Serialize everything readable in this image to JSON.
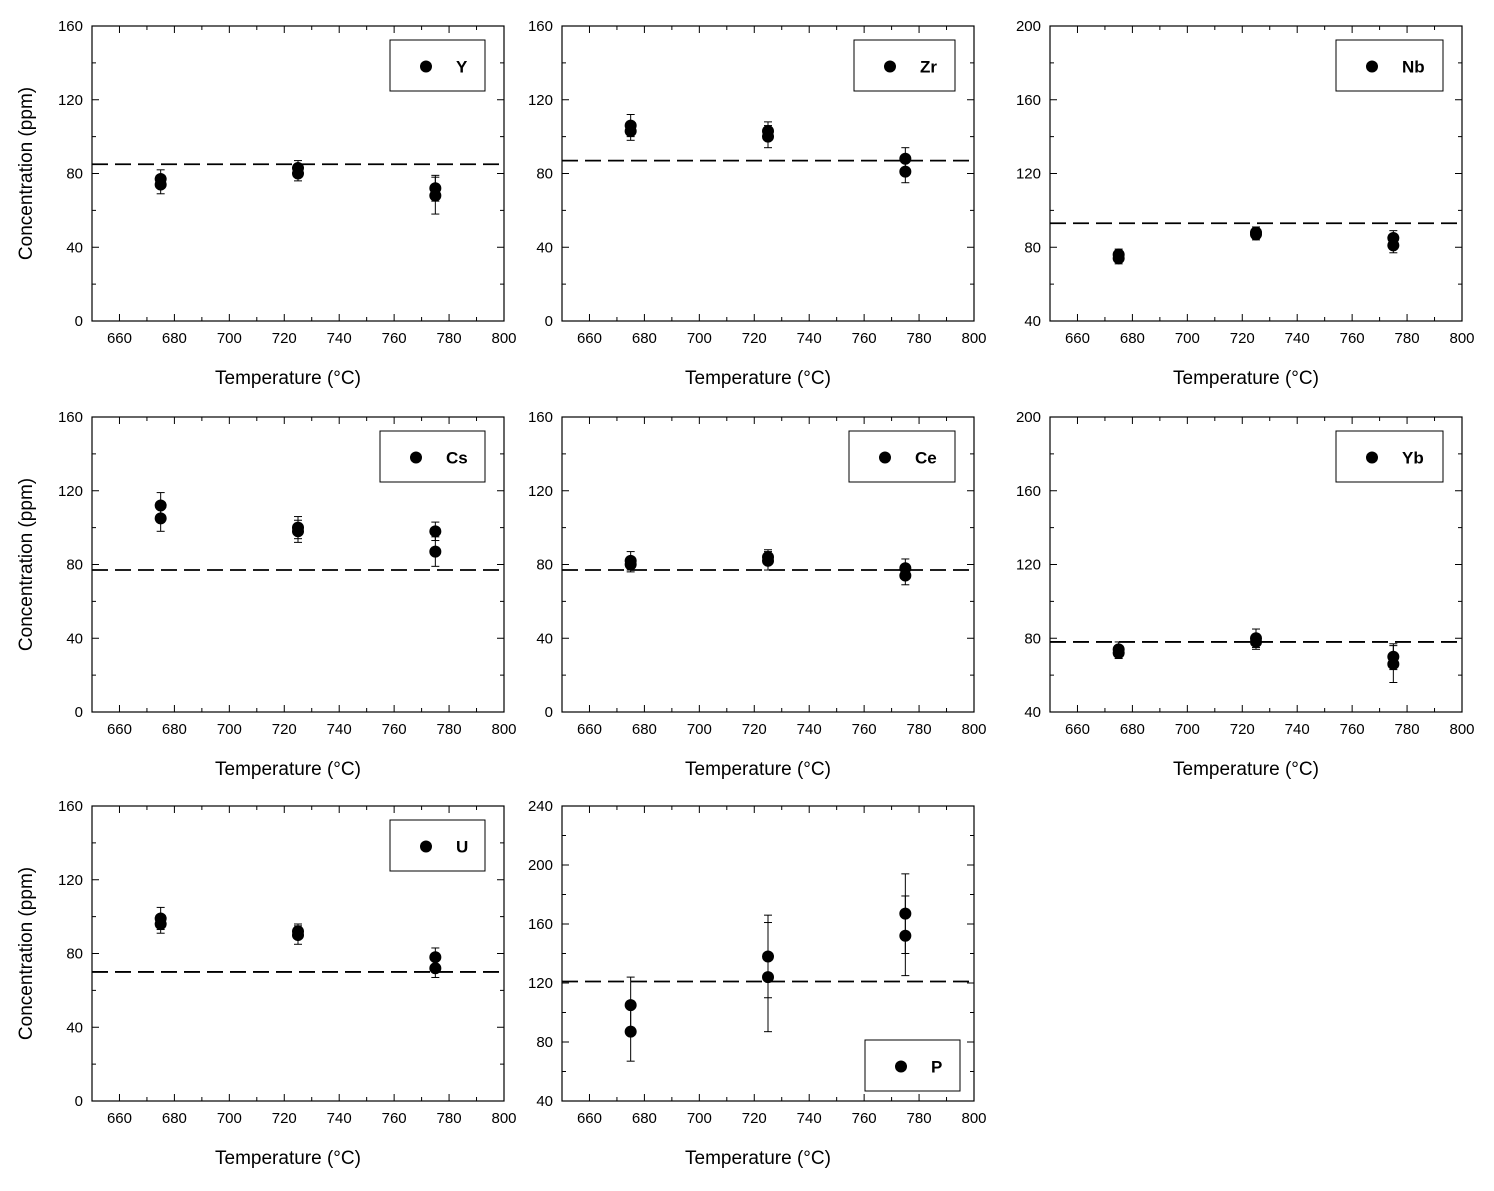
{
  "figure": {
    "xlabel": "Temperature (°C)",
    "ylabel": "Concentration (ppm)"
  },
  "chart_data": [
    {
      "type": "scatter",
      "element": "Y",
      "xlim": [
        650,
        800
      ],
      "xticks": [
        660,
        680,
        700,
        720,
        740,
        760,
        780,
        800
      ],
      "ylim": [
        0,
        160
      ],
      "yticks": [
        0,
        40,
        80,
        120,
        160
      ],
      "reference": 85,
      "legend_position": "top-right",
      "points": [
        {
          "x": 675,
          "y": 77,
          "err": 5
        },
        {
          "x": 675,
          "y": 74,
          "err": 5
        },
        {
          "x": 725,
          "y": 83,
          "err": 4
        },
        {
          "x": 725,
          "y": 80,
          "err": 4
        },
        {
          "x": 775,
          "y": 72,
          "err": 7
        },
        {
          "x": 775,
          "y": 68,
          "err": 10
        }
      ]
    },
    {
      "type": "scatter",
      "element": "Zr",
      "xlim": [
        650,
        800
      ],
      "xticks": [
        660,
        680,
        700,
        720,
        740,
        760,
        780,
        800
      ],
      "ylim": [
        0,
        160
      ],
      "yticks": [
        0,
        40,
        80,
        120,
        160
      ],
      "reference": 87,
      "legend_position": "top-right",
      "points": [
        {
          "x": 675,
          "y": 106,
          "err": 6
        },
        {
          "x": 675,
          "y": 103,
          "err": 5
        },
        {
          "x": 725,
          "y": 103,
          "err": 5
        },
        {
          "x": 725,
          "y": 100,
          "err": 6
        },
        {
          "x": 775,
          "y": 88,
          "err": 6
        },
        {
          "x": 775,
          "y": 81,
          "err": 6
        }
      ]
    },
    {
      "type": "scatter",
      "element": "Nb",
      "xlim": [
        650,
        800
      ],
      "xticks": [
        660,
        680,
        700,
        720,
        740,
        760,
        780,
        800
      ],
      "ylim": [
        40,
        200
      ],
      "yticks": [
        40,
        80,
        120,
        160,
        200
      ],
      "reference": 93,
      "legend_position": "top-right",
      "points": [
        {
          "x": 675,
          "y": 76,
          "err": 3
        },
        {
          "x": 675,
          "y": 74,
          "err": 3
        },
        {
          "x": 725,
          "y": 88,
          "err": 3
        },
        {
          "x": 725,
          "y": 87,
          "err": 3
        },
        {
          "x": 775,
          "y": 85,
          "err": 4
        },
        {
          "x": 775,
          "y": 81,
          "err": 4
        }
      ]
    },
    {
      "type": "scatter",
      "element": "Cs",
      "xlim": [
        650,
        800
      ],
      "xticks": [
        660,
        680,
        700,
        720,
        740,
        760,
        780,
        800
      ],
      "ylim": [
        0,
        160
      ],
      "yticks": [
        0,
        40,
        80,
        120,
        160
      ],
      "reference": 77,
      "legend_position": "top-right",
      "points": [
        {
          "x": 675,
          "y": 112,
          "err": 7
        },
        {
          "x": 675,
          "y": 105,
          "err": 7
        },
        {
          "x": 725,
          "y": 100,
          "err": 6
        },
        {
          "x": 725,
          "y": 98,
          "err": 6
        },
        {
          "x": 775,
          "y": 98,
          "err": 5
        },
        {
          "x": 775,
          "y": 87,
          "err": 8
        }
      ]
    },
    {
      "type": "scatter",
      "element": "Ce",
      "xlim": [
        650,
        800
      ],
      "xticks": [
        660,
        680,
        700,
        720,
        740,
        760,
        780,
        800
      ],
      "ylim": [
        0,
        160
      ],
      "yticks": [
        0,
        40,
        80,
        120,
        160
      ],
      "reference": 77,
      "legend_position": "top-right",
      "points": [
        {
          "x": 675,
          "y": 82,
          "err": 5
        },
        {
          "x": 675,
          "y": 80,
          "err": 4
        },
        {
          "x": 725,
          "y": 84,
          "err": 4
        },
        {
          "x": 725,
          "y": 82,
          "err": 5
        },
        {
          "x": 775,
          "y": 78,
          "err": 5
        },
        {
          "x": 775,
          "y": 74,
          "err": 5
        }
      ]
    },
    {
      "type": "scatter",
      "element": "Yb",
      "xlim": [
        650,
        800
      ],
      "xticks": [
        660,
        680,
        700,
        720,
        740,
        760,
        780,
        800
      ],
      "ylim": [
        40,
        200
      ],
      "yticks": [
        40,
        80,
        120,
        160,
        200
      ],
      "reference": 78,
      "legend_position": "top-right",
      "points": [
        {
          "x": 675,
          "y": 74,
          "err": 4
        },
        {
          "x": 675,
          "y": 72,
          "err": 3
        },
        {
          "x": 725,
          "y": 80,
          "err": 5
        },
        {
          "x": 725,
          "y": 78,
          "err": 4
        },
        {
          "x": 775,
          "y": 70,
          "err": 7
        },
        {
          "x": 775,
          "y": 66,
          "err": 10
        }
      ]
    },
    {
      "type": "scatter",
      "element": "U",
      "xlim": [
        650,
        800
      ],
      "xticks": [
        660,
        680,
        700,
        720,
        740,
        760,
        780,
        800
      ],
      "ylim": [
        0,
        160
      ],
      "yticks": [
        0,
        40,
        80,
        120,
        160
      ],
      "reference": 70,
      "legend_position": "top-right",
      "points": [
        {
          "x": 675,
          "y": 99,
          "err": 6
        },
        {
          "x": 675,
          "y": 96,
          "err": 5
        },
        {
          "x": 725,
          "y": 92,
          "err": 4
        },
        {
          "x": 725,
          "y": 90,
          "err": 5
        },
        {
          "x": 775,
          "y": 78,
          "err": 5
        },
        {
          "x": 775,
          "y": 72,
          "err": 5
        }
      ]
    },
    {
      "type": "scatter",
      "element": "P",
      "xlim": [
        650,
        800
      ],
      "xticks": [
        660,
        680,
        700,
        720,
        740,
        760,
        780,
        800
      ],
      "ylim": [
        40,
        240
      ],
      "yticks": [
        40,
        80,
        120,
        160,
        200,
        240
      ],
      "reference": 121,
      "legend_position": "bottom-right",
      "points": [
        {
          "x": 675,
          "y": 105,
          "err": 19
        },
        {
          "x": 675,
          "y": 87,
          "err": 20
        },
        {
          "x": 725,
          "y": 138,
          "err": 28
        },
        {
          "x": 725,
          "y": 124,
          "err": 37
        },
        {
          "x": 775,
          "y": 167,
          "err": 27
        },
        {
          "x": 775,
          "y": 152,
          "err": 27
        }
      ]
    }
  ]
}
